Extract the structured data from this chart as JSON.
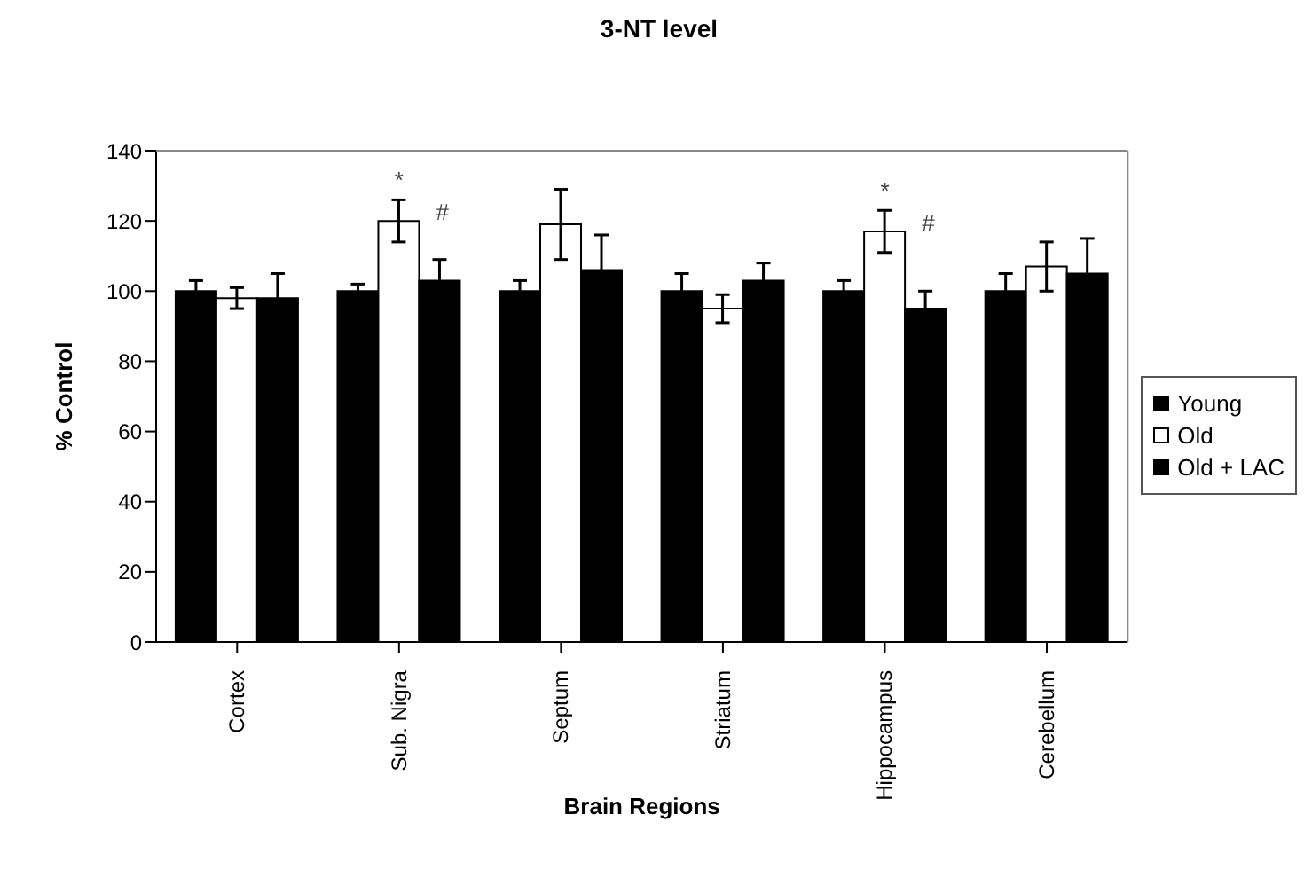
{
  "chart_data": {
    "type": "bar",
    "title": "3-NT level",
    "xlabel": "Brain Regions",
    "ylabel": "% Control",
    "categories": [
      "Cortex",
      "Sub. Nigra",
      "Septum",
      "Striatum",
      "Hippocampus",
      "Cerebellum"
    ],
    "series": [
      {
        "name": "Young",
        "color": "#000000",
        "values": [
          100,
          100,
          100,
          100,
          100,
          100
        ],
        "errors": [
          3,
          2,
          3,
          5,
          3,
          5
        ]
      },
      {
        "name": "Old",
        "color": "#ffffff",
        "values": [
          98,
          120,
          119,
          95,
          117,
          107
        ],
        "errors": [
          3,
          6,
          10,
          4,
          6,
          7
        ]
      },
      {
        "name": "Old + LAC",
        "color": "#000000",
        "values": [
          98,
          103,
          106,
          103,
          95,
          105
        ],
        "errors": [
          7,
          6,
          10,
          5,
          5,
          10
        ]
      }
    ],
    "annotations": [
      {
        "text": "*",
        "x": "Sub. Nigra",
        "y": 120
      },
      "#",
      {
        "text": "*",
        "x": "Hippocampus",
        "y": 117
      },
      "#"
    ],
    "ylim": [
      0,
      140
    ],
    "yticks": [
      0,
      20,
      40,
      60,
      80,
      100,
      120,
      140
    ],
    "grid": false,
    "legend": "right"
  }
}
